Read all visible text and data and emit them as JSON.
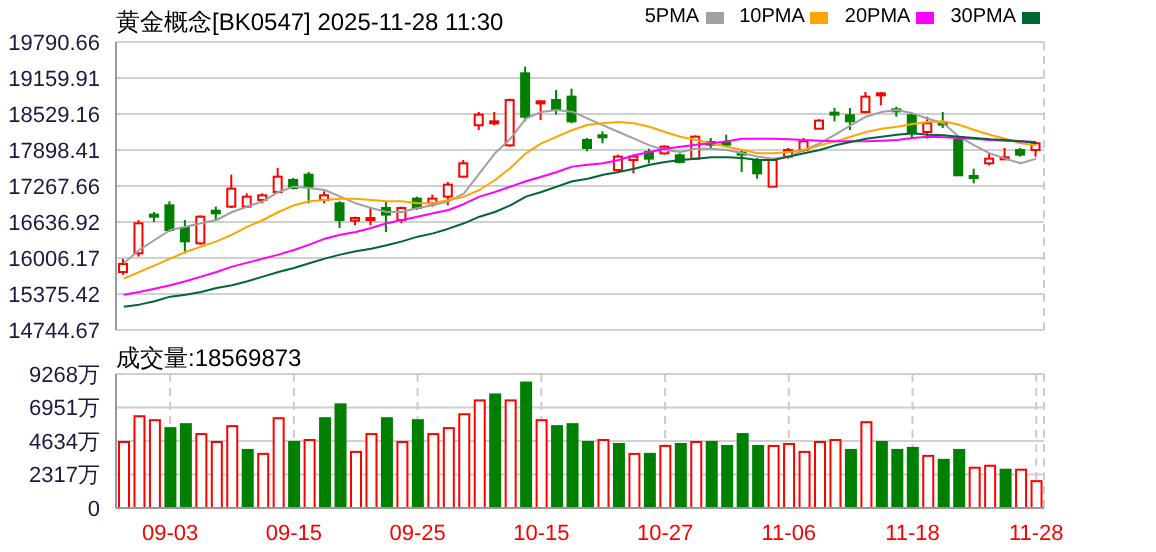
{
  "chart_data": [
    {
      "type": "candlestick",
      "title": "黄金概念[BK0547] 2025-11-28 11:30",
      "legend": "top right",
      "grid": true,
      "tick_labels": "y",
      "categories": [
        null,
        null,
        null,
        null,
        null,
        null,
        null,
        null,
        null,
        null,
        null,
        null,
        null,
        null,
        null,
        null,
        null,
        null,
        null,
        null,
        null,
        null,
        null,
        null,
        null,
        null,
        null,
        null,
        null,
        null,
        null,
        null,
        null,
        null,
        null,
        null,
        null,
        null,
        null,
        null,
        null,
        null,
        null,
        null,
        null,
        null,
        null,
        null,
        null,
        null,
        null,
        null,
        null,
        null,
        null,
        null,
        null,
        null,
        null,
        null
      ],
      "ylim": [
        14744.67,
        19790.66
      ],
      "yticks": [
        14744.67,
        15375.42,
        16006.17,
        16636.92,
        17267.66,
        17898.41,
        18529.16,
        19159.91,
        19790.66
      ],
      "ohlc": [
        [
          15761,
          15995,
          15714,
          15901
        ],
        [
          16088,
          16672,
          16030,
          16614
        ],
        [
          16766,
          16812,
          16637,
          16730
        ],
        [
          16929,
          17000,
          16462,
          16497
        ],
        [
          16532,
          16672,
          16088,
          16298
        ],
        [
          16263,
          16754,
          16240,
          16730
        ],
        [
          16836,
          16906,
          16672,
          16789
        ],
        [
          16906,
          17466,
          16882,
          17221
        ],
        [
          16906,
          17139,
          16882,
          17081
        ],
        [
          17023,
          17139,
          16964,
          17104
        ],
        [
          17163,
          17583,
          17139,
          17431
        ],
        [
          17373,
          17408,
          17209,
          17233
        ],
        [
          17466,
          17513,
          16964,
          17256
        ],
        [
          17023,
          17174,
          16964,
          17104
        ],
        [
          16964,
          17000,
          16532,
          16672
        ],
        [
          16660,
          16730,
          16579,
          16707
        ],
        [
          16672,
          16882,
          16579,
          16707
        ],
        [
          16882,
          17000,
          16462,
          16766
        ],
        [
          16672,
          16906,
          16614,
          16882
        ],
        [
          17046,
          17081,
          16847,
          16882
        ],
        [
          16964,
          17116,
          16906,
          17046
        ],
        [
          17081,
          17338,
          16929,
          17291
        ],
        [
          17431,
          17723,
          17420,
          17665
        ],
        [
          18331,
          18564,
          18249,
          18518
        ],
        [
          18366,
          18564,
          18331,
          18401
        ],
        [
          17980,
          18798,
          17957,
          18775
        ],
        [
          19242,
          19358,
          18401,
          18482
        ],
        [
          18716,
          18775,
          18424,
          18751
        ],
        [
          18775,
          18950,
          18518,
          18600
        ],
        [
          18833,
          18973,
          18366,
          18401
        ],
        [
          18074,
          18109,
          17875,
          17934
        ],
        [
          18156,
          18226,
          18015,
          18121
        ],
        [
          17548,
          17817,
          17525,
          17782
        ],
        [
          17723,
          17817,
          17490,
          17782
        ],
        [
          17863,
          17922,
          17665,
          17747
        ],
        [
          17840,
          17980,
          17817,
          17957
        ],
        [
          17805,
          17840,
          17665,
          17688
        ],
        [
          17747,
          18156,
          17723,
          18132
        ],
        [
          18039,
          18109,
          17922,
          17992
        ],
        [
          18027,
          18167,
          17957,
          17992
        ],
        [
          17852,
          17898,
          17513,
          17828
        ],
        [
          17723,
          17758,
          17396,
          17490
        ],
        [
          17256,
          17747,
          17256,
          17723
        ],
        [
          17782,
          17934,
          17747,
          17898
        ],
        [
          17898,
          18109,
          17863,
          18050
        ],
        [
          18272,
          18436,
          18272,
          18413
        ],
        [
          18553,
          18634,
          18401,
          18529
        ],
        [
          18506,
          18634,
          18249,
          18401
        ],
        [
          18564,
          18915,
          18541,
          18833
        ],
        [
          18868,
          18915,
          18681,
          18891
        ],
        [
          18611,
          18658,
          18482,
          18588
        ],
        [
          18506,
          18541,
          18097,
          18190
        ],
        [
          18214,
          18482,
          18097,
          18366
        ],
        [
          18377,
          18564,
          18284,
          18354
        ],
        [
          18074,
          18097,
          17455,
          17455
        ],
        [
          17443,
          17571,
          17315,
          17420
        ],
        [
          17665,
          17840,
          17630,
          17747
        ],
        [
          17747,
          17934,
          17723,
          17770
        ],
        [
          17898,
          17934,
          17782,
          17817
        ],
        [
          17898,
          18039,
          17782,
          18015
        ]
      ],
      "colors": [
        "#ff0000",
        "#ff0000",
        "#008000",
        "#008000",
        "#008000",
        "#ff0000",
        "#008000",
        "#ff0000",
        "#ff0000",
        "#ff0000",
        "#ff0000",
        "#008000",
        "#008000",
        "#ff0000",
        "#008000",
        "#ff0000",
        "#ff0000",
        "#008000",
        "#ff0000",
        "#008000",
        "#ff0000",
        "#ff0000",
        "#ff0000",
        "#ff0000",
        "#ff0000",
        "#ff0000",
        "#008000",
        "#ff0000",
        "#008000",
        "#008000",
        "#008000",
        "#008000",
        "#ff0000",
        "#ff0000",
        "#008000",
        "#ff0000",
        "#008000",
        "#ff0000",
        "#008000",
        "#008000",
        "#008000",
        "#008000",
        "#ff0000",
        "#ff0000",
        "#ff0000",
        "#ff0000",
        "#008000",
        "#008000",
        "#ff0000",
        "#ff0000",
        "#008000",
        "#008000",
        "#ff0000",
        "#008000",
        "#008000",
        "#008000",
        "#ff0000",
        "#ff0000",
        "#008000",
        "#ff0000"
      ],
      "series": [
        {
          "type": "line",
          "name": "5PMA",
          "color": "#a0a0a0",
          "values": [
            15913,
            16146,
            16322,
            16497,
            16555,
            16614,
            16672,
            16812,
            16906,
            17000,
            17163,
            17256,
            17233,
            17198,
            17081,
            16964,
            16882,
            16812,
            16812,
            16882,
            16929,
            17000,
            17139,
            17490,
            17840,
            18097,
            18447,
            18564,
            18599,
            18570,
            18447,
            18331,
            18214,
            18097,
            17980,
            17898,
            17863,
            17922,
            17922,
            17898,
            17840,
            17782,
            17747,
            17782,
            17898,
            18015,
            18167,
            18331,
            18482,
            18564,
            18599,
            18541,
            18447,
            18366,
            18132,
            17980,
            17840,
            17747,
            17665,
            17747
          ]
        },
        {
          "type": "line",
          "name": "10PMA",
          "color": "#ffa500",
          "values": [
            15644,
            15761,
            15878,
            15995,
            16111,
            16205,
            16298,
            16415,
            16555,
            16672,
            16812,
            16929,
            17000,
            17023,
            17046,
            17046,
            17023,
            17000,
            17000,
            16964,
            16964,
            17023,
            17081,
            17198,
            17373,
            17583,
            17840,
            18015,
            18132,
            18249,
            18342,
            18366,
            18389,
            18366,
            18307,
            18214,
            18132,
            18074,
            18015,
            17957,
            17898,
            17840,
            17840,
            17863,
            17898,
            17980,
            18050,
            18132,
            18214,
            18272,
            18307,
            18354,
            18389,
            18401,
            18342,
            18249,
            18167,
            18097,
            18015,
            17980
          ]
        },
        {
          "type": "line",
          "name": "20PMA",
          "color": "#ff00ff",
          "values": [
            15364,
            15411,
            15469,
            15528,
            15598,
            15680,
            15761,
            15855,
            15925,
            15995,
            16065,
            16146,
            16240,
            16345,
            16415,
            16462,
            16532,
            16614,
            16672,
            16730,
            16789,
            16847,
            16953,
            17081,
            17163,
            17256,
            17350,
            17431,
            17513,
            17607,
            17641,
            17665,
            17723,
            17805,
            17863,
            17922,
            17957,
            17992,
            18015,
            18050,
            18097,
            18097,
            18097,
            18085,
            18074,
            18062,
            18050,
            18050,
            18050,
            18062,
            18074,
            18109,
            18132,
            18120,
            18109,
            18097,
            18074,
            18062,
            18050,
            18039
          ]
        },
        {
          "type": "line",
          "name": "30PMA",
          "color": "#006633",
          "values": [
            15154,
            15189,
            15247,
            15329,
            15364,
            15411,
            15481,
            15528,
            15598,
            15680,
            15761,
            15831,
            15913,
            15995,
            16065,
            16123,
            16170,
            16228,
            16298,
            16380,
            16438,
            16520,
            16614,
            16730,
            16812,
            16929,
            17081,
            17163,
            17256,
            17350,
            17396,
            17466,
            17513,
            17571,
            17641,
            17688,
            17723,
            17747,
            17770,
            17770,
            17758,
            17723,
            17723,
            17782,
            17840,
            17898,
            17980,
            18039,
            18097,
            18132,
            18167,
            18190,
            18167,
            18155,
            18132,
            18109,
            18085,
            18074,
            18050,
            18027
          ]
        }
      ]
    },
    {
      "type": "bar",
      "title": "成交量:18569873",
      "grid": true,
      "categories": [
        null,
        null,
        null,
        "09-03",
        null,
        null,
        null,
        null,
        null,
        null,
        null,
        "09-15",
        null,
        null,
        null,
        null,
        null,
        null,
        null,
        "09-25",
        null,
        null,
        null,
        null,
        null,
        null,
        null,
        "10-15",
        null,
        null,
        null,
        null,
        null,
        null,
        null,
        "10-27",
        null,
        null,
        null,
        null,
        null,
        null,
        null,
        "11-06",
        null,
        null,
        null,
        null,
        null,
        null,
        null,
        "11-18",
        null,
        null,
        null,
        null,
        null,
        null,
        null,
        "11-28"
      ],
      "ylim": [
        0,
        9268
      ],
      "yticks": [
        0,
        {
          "value": 2317,
          "label": "2317万"
        },
        {
          "value": 4634,
          "label": "4634万"
        },
        {
          "value": 6951,
          "label": "6951万"
        },
        {
          "value": 9268,
          "label": "9268万"
        }
      ],
      "values": [
        4566,
        6347,
        6073,
        5525,
        5799,
        5114,
        4566,
        5662,
        4018,
        3744,
        6210,
        4566,
        4703,
        6210,
        7169,
        3881,
        5114,
        6210,
        4566,
        6073,
        5114,
        5525,
        6484,
        7443,
        7854,
        7443,
        8675,
        6073,
        5662,
        5799,
        4566,
        4703,
        4429,
        3744,
        3744,
        4292,
        4429,
        4566,
        4566,
        4292,
        5114,
        4292,
        4292,
        4429,
        3881,
        4566,
        4703,
        4018,
        5936,
        4566,
        4018,
        4155,
        3607,
        3333,
        4018,
        2785,
        2922,
        2648,
        2648,
        1857
      ],
      "colors": [
        "#ff0000",
        "#ff0000",
        "#ff0000",
        "#008000",
        "#008000",
        "#ff0000",
        "#ff0000",
        "#ff0000",
        "#008000",
        "#ff0000",
        "#ff0000",
        "#008000",
        "#ff0000",
        "#008000",
        "#008000",
        "#ff0000",
        "#ff0000",
        "#008000",
        "#ff0000",
        "#008000",
        "#ff0000",
        "#ff0000",
        "#ff0000",
        "#ff0000",
        "#008000",
        "#ff0000",
        "#008000",
        "#ff0000",
        "#008000",
        "#008000",
        "#008000",
        "#ff0000",
        "#008000",
        "#ff0000",
        "#008000",
        "#ff0000",
        "#008000",
        "#ff0000",
        "#008000",
        "#008000",
        "#008000",
        "#008000",
        "#ff0000",
        "#ff0000",
        "#ff0000",
        "#ff0000",
        "#ff0000",
        "#008000",
        "#ff0000",
        "#008000",
        "#008000",
        "#008000",
        "#ff0000",
        "#008000",
        "#008000",
        "#ff0000",
        "#ff0000",
        "#008000",
        "#ff0000",
        "#ff0000"
      ]
    }
  ]
}
